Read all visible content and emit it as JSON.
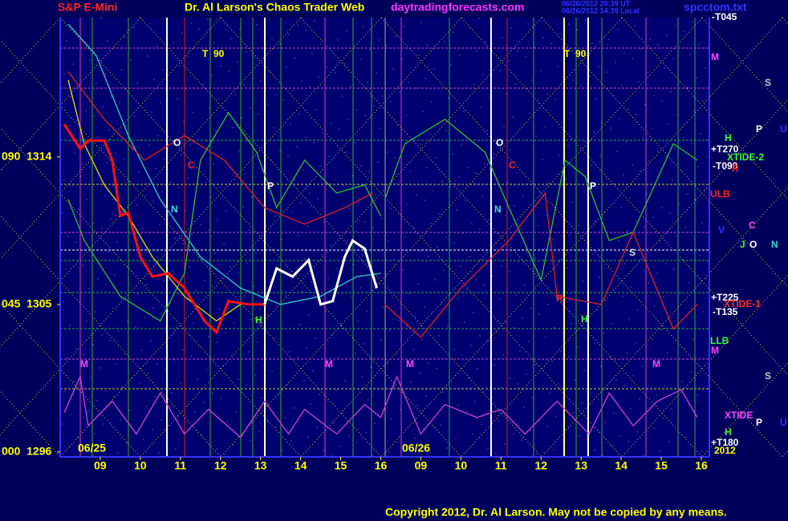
{
  "chart_data": {
    "type": "line",
    "title": "S&P E-Mini",
    "subtitle": "Dr. Al Larson's Chaos Trader Web",
    "site": "daytradingforecasts.com",
    "timestamps": [
      "06/26/2012 20:39 UT",
      "06/26/2012 14:39 Local"
    ],
    "file": "spcctom.txt",
    "copyright": "Copyright 2012, Dr. Al Larson. May not be copied by any means.",
    "dates": [
      "06/25",
      "06/26"
    ],
    "xlim": [
      8,
      24.2
    ],
    "xticks": [
      {
        "value": 9,
        "label": "09"
      },
      10,
      11,
      12,
      13,
      14,
      15,
      16,
      {
        "value": 17,
        "label": "09"
      },
      {
        "value": 18,
        "label": "10"
      },
      {
        "value": 19,
        "label": "11"
      },
      {
        "value": 20,
        "label": "12"
      },
      {
        "value": 21,
        "label": "13"
      },
      {
        "value": 22,
        "label": "14"
      },
      {
        "value": 23,
        "label": "15"
      },
      {
        "value": 24,
        "label": "16"
      }
    ],
    "ylim": [
      1295.7,
      1322.5
    ],
    "yticks": [
      {
        "value": 1314,
        "label": "090  1314"
      },
      {
        "value": 1305,
        "label": "045  1305"
      },
      {
        "value": 1296,
        "label": "000  1296"
      }
    ],
    "series": [
      {
        "color": "#33cccc",
        "x": [
          8.2,
          8.9,
          9.7,
          10.5,
          11.5,
          12.5,
          13.5,
          14.5,
          15.4,
          16.0
        ],
        "values": [
          1322.1,
          1320.2,
          1315.3,
          1311.4,
          1307.9,
          1306.0,
          1305.0,
          1305.5,
          1306.7,
          1306.9
        ]
      },
      {
        "color": "#dd2222",
        "x": [
          8.2,
          9.1,
          10.1,
          11.1,
          12.1,
          13.1,
          14.1,
          15.1,
          15.8
        ],
        "values": [
          1319.2,
          1316.3,
          1313.8,
          1315.3,
          1313.8,
          1310.9,
          1309.9,
          1310.9,
          1311.8
        ]
      },
      {
        "color": "#33bb33",
        "x": [
          8.2,
          8.6,
          9.5,
          10.5,
          11.1,
          11.5,
          12.2,
          12.9,
          13.4,
          14.1,
          14.9,
          15.6,
          16.0
        ],
        "values": [
          1311.4,
          1308.9,
          1305.5,
          1304.0,
          1306.9,
          1313.8,
          1316.7,
          1314.3,
          1310.9,
          1313.8,
          1311.8,
          1312.3,
          1310.4
        ]
      },
      {
        "color": "#dddd00",
        "x": [
          8.2,
          8.6,
          9.1,
          9.7,
          10.3,
          11.1,
          11.9,
          12.5
        ],
        "values": [
          1318.7,
          1314.8,
          1312.3,
          1310.4,
          1307.9,
          1305.5,
          1304.0,
          1305.0
        ]
      },
      {
        "color": "#ff1111",
        "x": [
          8.1,
          8.5,
          8.7,
          9.1,
          9.3,
          9.5,
          9.7,
          10.0,
          10.3,
          10.7,
          11.1,
          11.6,
          11.9,
          12.2,
          12.7,
          13.1
        ],
        "values": [
          1316.0,
          1314.5,
          1315.0,
          1315.0,
          1313.8,
          1310.4,
          1310.6,
          1307.9,
          1306.7,
          1306.9,
          1306.0,
          1304.0,
          1303.3,
          1305.2,
          1305.0,
          1305.0
        ]
      },
      {
        "color": "#ffffff",
        "x": [
          13.1,
          13.4,
          13.8,
          14.2,
          14.5,
          14.8,
          15.1,
          15.3,
          15.6,
          15.9
        ],
        "values": [
          1305.0,
          1307.2,
          1306.7,
          1307.7,
          1305.0,
          1305.2,
          1307.9,
          1308.9,
          1308.4,
          1306.0
        ]
      },
      {
        "color": "#33bb33",
        "x": [
          16.1,
          16.6,
          17.6,
          18.6,
          19.2,
          20.0,
          20.6,
          21.1,
          21.7,
          22.3,
          23.3,
          23.9
        ],
        "values": [
          1311.4,
          1314.8,
          1316.3,
          1314.3,
          1310.9,
          1306.5,
          1313.8,
          1312.8,
          1308.9,
          1309.4,
          1314.8,
          1313.8
        ]
      },
      {
        "color": "#dd2222",
        "x": [
          16.1,
          17.0,
          18.0,
          19.2,
          20.1,
          20.4,
          21.5,
          22.3,
          23.3,
          23.9
        ],
        "values": [
          1305.0,
          1303.0,
          1306.0,
          1308.9,
          1311.8,
          1305.5,
          1305.0,
          1309.4,
          1303.5,
          1305.0
        ]
      },
      {
        "color": "#cc44cc",
        "x": [
          8.1,
          8.5,
          8.7,
          9.3,
          9.9,
          10.5,
          11.1,
          11.7,
          12.5,
          13.1,
          13.7,
          14.1,
          14.9,
          15.6,
          16.0,
          16.4,
          17.0,
          17.6,
          18.4,
          19.0,
          19.6,
          20.4,
          21.2,
          21.7,
          22.3,
          22.9,
          23.5,
          23.9
        ],
        "values": [
          1298.4,
          1300.6,
          1297.6,
          1299.1,
          1297.1,
          1299.6,
          1297.1,
          1298.6,
          1296.9,
          1299.1,
          1297.1,
          1298.6,
          1297.1,
          1298.9,
          1298.1,
          1300.6,
          1297.1,
          1298.9,
          1298.1,
          1298.6,
          1297.1,
          1299.1,
          1297.1,
          1299.6,
          1297.6,
          1299.1,
          1299.8,
          1298.1
        ]
      }
    ],
    "annotations": [
      {
        "text": "T  90",
        "color": "#ffff00"
      },
      {
        "text": "T  90",
        "color": "#ffff00"
      },
      {
        "text": "O",
        "color": "#ffffff"
      },
      {
        "text": "C",
        "color": "#ff2222"
      },
      {
        "text": "N",
        "color": "#33dddd"
      },
      {
        "text": "P",
        "color": "#ffffff"
      },
      {
        "text": "H",
        "color": "#33ff33"
      },
      {
        "text": "M",
        "color": "#ff44ff"
      },
      {
        "text": "M",
        "color": "#ff44ff"
      },
      {
        "text": "M",
        "color": "#ff44ff"
      },
      {
        "text": "O",
        "color": "#ffffff"
      },
      {
        "text": "C",
        "color": "#ff2222"
      },
      {
        "text": "N",
        "color": "#33dddd"
      },
      {
        "text": "P",
        "color": "#ffffff"
      },
      {
        "text": "R",
        "color": "#ff2222"
      },
      {
        "text": "H",
        "color": "#33ff33"
      },
      {
        "text": "S",
        "color": "#dddddd"
      },
      {
        "text": "M",
        "color": "#ff44ff"
      },
      {
        "text": "-T045",
        "color": "#ffffff"
      },
      {
        "text": "M",
        "color": "#ff44ff"
      },
      {
        "text": "S",
        "color": "#cccccc"
      },
      {
        "text": "P",
        "color": "#ffffff"
      },
      {
        "text": "U",
        "color": "#3333ff"
      },
      {
        "text": "H",
        "color": "#33ff33"
      },
      {
        "text": "+T270",
        "color": "#ffffff"
      },
      {
        "text": "XTIDE-2",
        "color": "#33ff33"
      },
      {
        "text": "-T090",
        "color": "#ffffff"
      },
      {
        "text": "R",
        "color": "#ff2222"
      },
      {
        "text": "ULB",
        "color": "#ff2222"
      },
      {
        "text": "C",
        "color": "#ff44ff"
      },
      {
        "text": "V",
        "color": "#3333ff"
      },
      {
        "text": "J",
        "color": "#33ff33"
      },
      {
        "text": "O",
        "color": "#ffffff"
      },
      {
        "text": "N",
        "color": "#33dddd"
      },
      {
        "text": "+T225",
        "color": "#ffffff"
      },
      {
        "text": "XTIDE-1",
        "color": "#ff3322"
      },
      {
        "text": "-T135",
        "color": "#ffffff"
      },
      {
        "text": "LLB",
        "color": "#33ff33"
      },
      {
        "text": "M",
        "color": "#ff44ff"
      },
      {
        "text": "S",
        "color": "#cccccc"
      },
      {
        "text": "XTIDE",
        "color": "#ff44ff"
      },
      {
        "text": "P",
        "color": "#ffffff"
      },
      {
        "text": "U",
        "color": "#3333ff"
      },
      {
        "text": "H",
        "color": "#33ff33"
      },
      {
        "text": "+T180",
        "color": "#ffffff"
      },
      {
        "text": "2012",
        "color": "#ffff00"
      }
    ]
  }
}
